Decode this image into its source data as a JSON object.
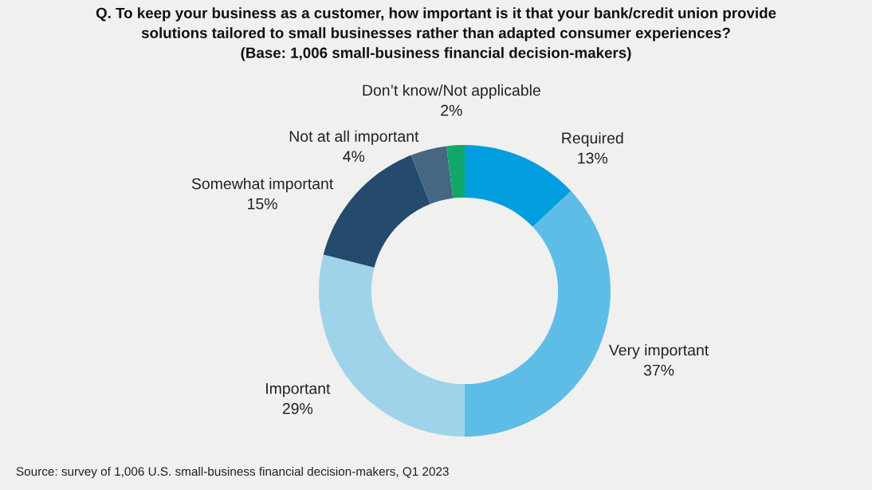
{
  "chart_data": {
    "type": "donut",
    "title": "Q. To keep your business as a customer, how important is it that your bank/credit union provide\nsolutions tailored to small businesses rather than adapted consumer experiences?\n(Base: 1,006 small-business financial decision-makers)",
    "categories": [
      "Required",
      "Very important",
      "Important",
      "Somewhat important",
      "Not at all important",
      "Don’t know/Not applicable"
    ],
    "values": [
      13,
      37,
      29,
      15,
      4,
      2
    ],
    "colors": [
      "#009ddf",
      "#5ebde6",
      "#9fd3ea",
      "#244a6d",
      "#456781",
      "#12a76a"
    ],
    "value_labels": [
      "13%",
      "37%",
      "29%",
      "15%",
      "4%",
      "2%"
    ],
    "annotations": [
      "Source: survey of 1,006 U.S. small-business financial decision-makers, Q1 2023"
    ]
  }
}
